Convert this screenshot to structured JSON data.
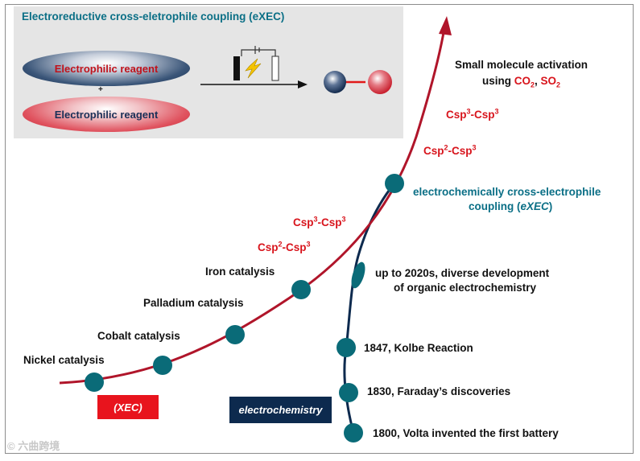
{
  "panel": {
    "title": "Electroreductive cross-eletrophile coupling (eXEC)",
    "reagent_top": "Electrophilic reagent",
    "plus": "+",
    "reagent_bottom": "Electrophilic reagent"
  },
  "xec_curve": {
    "milestones": [
      {
        "label": "Nickel catalysis"
      },
      {
        "label": "Cobalt catalysis"
      },
      {
        "label": "Palladium catalysis"
      },
      {
        "label": "Iron catalysis"
      }
    ],
    "bond_sp2_sp3": {
      "pre": "Csp",
      "sup1": "2",
      "mid": "-Csp",
      "sup2": "3"
    },
    "bond_sp3_sp3": {
      "pre": "Csp",
      "sup1": "3",
      "mid": "-Csp",
      "sup2": "3"
    },
    "badge": "(XEC)"
  },
  "echem_curve": {
    "milestones": [
      {
        "label": "1800, Volta invented the first battery"
      },
      {
        "label": "1830, Faraday’s discoveries"
      },
      {
        "label": "1847, Kolbe Reaction"
      }
    ],
    "development": {
      "line1": "up to 2020s,  diverse development",
      "line2": "of organic electrochemistry"
    },
    "badge": "electrochemistry"
  },
  "exec_node": {
    "line1": "electrochemically cross-electrophile",
    "line2_pre": "coupling (",
    "line2_em": "eXEC",
    "line2_post": ")"
  },
  "upper": {
    "bond_sp2_sp3": {
      "pre": "Csp",
      "sup1": "2",
      "mid": "-Csp",
      "sup2": "3"
    },
    "bond_sp3_sp3": {
      "pre": "Csp",
      "sup1": "3",
      "mid": "-Csp",
      "sup2": "3"
    },
    "small_molecule": {
      "line1": "Small molecule activation",
      "line2_pre": "using ",
      "co2_pre": "CO",
      "co2_sub": "2",
      "sep": ", ",
      "so2_pre": "SO",
      "so2_sub": "2"
    }
  },
  "watermark": "© 六曲跨境",
  "colors": {
    "xec_line": "#b0152a",
    "echem_line": "#0d2a4e",
    "node": "#0a6b78",
    "label_red": "#d8141c",
    "label_teal": "#0b6f86"
  }
}
